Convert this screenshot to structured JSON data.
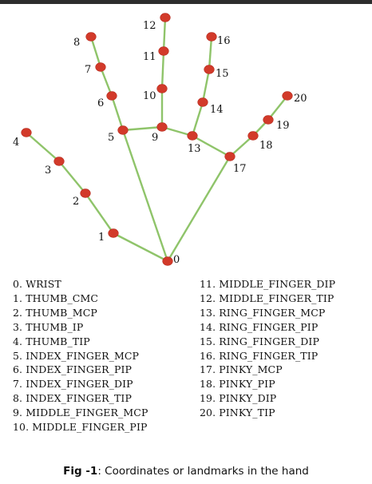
{
  "figure": {
    "landmarks": [
      {
        "id": 0,
        "label": "0",
        "name": "WRIST"
      },
      {
        "id": 1,
        "label": "1",
        "name": "THUMB_CMC"
      },
      {
        "id": 2,
        "label": "2",
        "name": "THUMB_MCP"
      },
      {
        "id": 3,
        "label": "3",
        "name": "THUMB_IP"
      },
      {
        "id": 4,
        "label": "4",
        "name": "THUMB_TIP"
      },
      {
        "id": 5,
        "label": "5",
        "name": "INDEX_FINGER_MCP"
      },
      {
        "id": 6,
        "label": "6",
        "name": "INDEX_FINGER_PIP"
      },
      {
        "id": 7,
        "label": "7",
        "name": "INDEX_FINGER_DIP"
      },
      {
        "id": 8,
        "label": "8",
        "name": "INDEX_FINGER_TIP"
      },
      {
        "id": 9,
        "label": "9",
        "name": "MIDDLE_FINGER_MCP"
      },
      {
        "id": 10,
        "label": "10",
        "name": "MIDDLE_FINGER_PIP"
      },
      {
        "id": 11,
        "label": "11",
        "name": "MIDDLE_FINGER_DIP"
      },
      {
        "id": 12,
        "label": "12",
        "name": "MIDDLE_FINGER_TIP"
      },
      {
        "id": 13,
        "label": "13",
        "name": "RING_FINGER_MCP"
      },
      {
        "id": 14,
        "label": "14",
        "name": "RING_FINGER_PIP"
      },
      {
        "id": 15,
        "label": "15",
        "name": "RING_FINGER_DIP"
      },
      {
        "id": 16,
        "label": "16",
        "name": "RING_FINGER_TIP"
      },
      {
        "id": 17,
        "label": "17",
        "name": "PINKY_MCP"
      },
      {
        "id": 18,
        "label": "18",
        "name": "PINKY_PIP"
      },
      {
        "id": 19,
        "label": "19",
        "name": "PINKY_DIP"
      },
      {
        "id": 20,
        "label": "20",
        "name": "PINKY_TIP"
      }
    ],
    "connections": [
      [
        0,
        1
      ],
      [
        1,
        2
      ],
      [
        2,
        3
      ],
      [
        3,
        4
      ],
      [
        0,
        5
      ],
      [
        5,
        6
      ],
      [
        6,
        7
      ],
      [
        7,
        8
      ],
      [
        5,
        9
      ],
      [
        9,
        10
      ],
      [
        10,
        11
      ],
      [
        11,
        12
      ],
      [
        9,
        13
      ],
      [
        13,
        14
      ],
      [
        14,
        15
      ],
      [
        15,
        16
      ],
      [
        13,
        17
      ],
      [
        0,
        17
      ],
      [
        17,
        18
      ],
      [
        18,
        19
      ],
      [
        19,
        20
      ]
    ],
    "legend_left": [
      "0. WRIST",
      "1. THUMB_CMC",
      "2. THUMB_MCP",
      "3. THUMB_IP",
      "4. THUMB_TIP",
      "5. INDEX_FINGER_MCP",
      "6. INDEX_FINGER_PIP",
      "7. INDEX_FINGER_DIP",
      "8. INDEX_FINGER_TIP",
      "9. MIDDLE_FINGER_MCP",
      "10. MIDDLE_FINGER_PIP"
    ],
    "legend_right": [
      "11. MIDDLE_FINGER_DIP",
      "12. MIDDLE_FINGER_TIP",
      "13. RING_FINGER_MCP",
      "14. RING_FINGER_PIP",
      "15. RING_FINGER_DIP",
      "16. RING_FINGER_TIP",
      "17. PINKY_MCP",
      "18. PINKY_PIP",
      "19. PINKY_DIP",
      "20. PINKY_TIP"
    ],
    "caption": {
      "prefix": "Fig -1",
      "text": ": Coordinates or landmarks in the hand"
    },
    "colors": {
      "joint": "#d23a2a",
      "bone": "#8fc46a"
    }
  }
}
